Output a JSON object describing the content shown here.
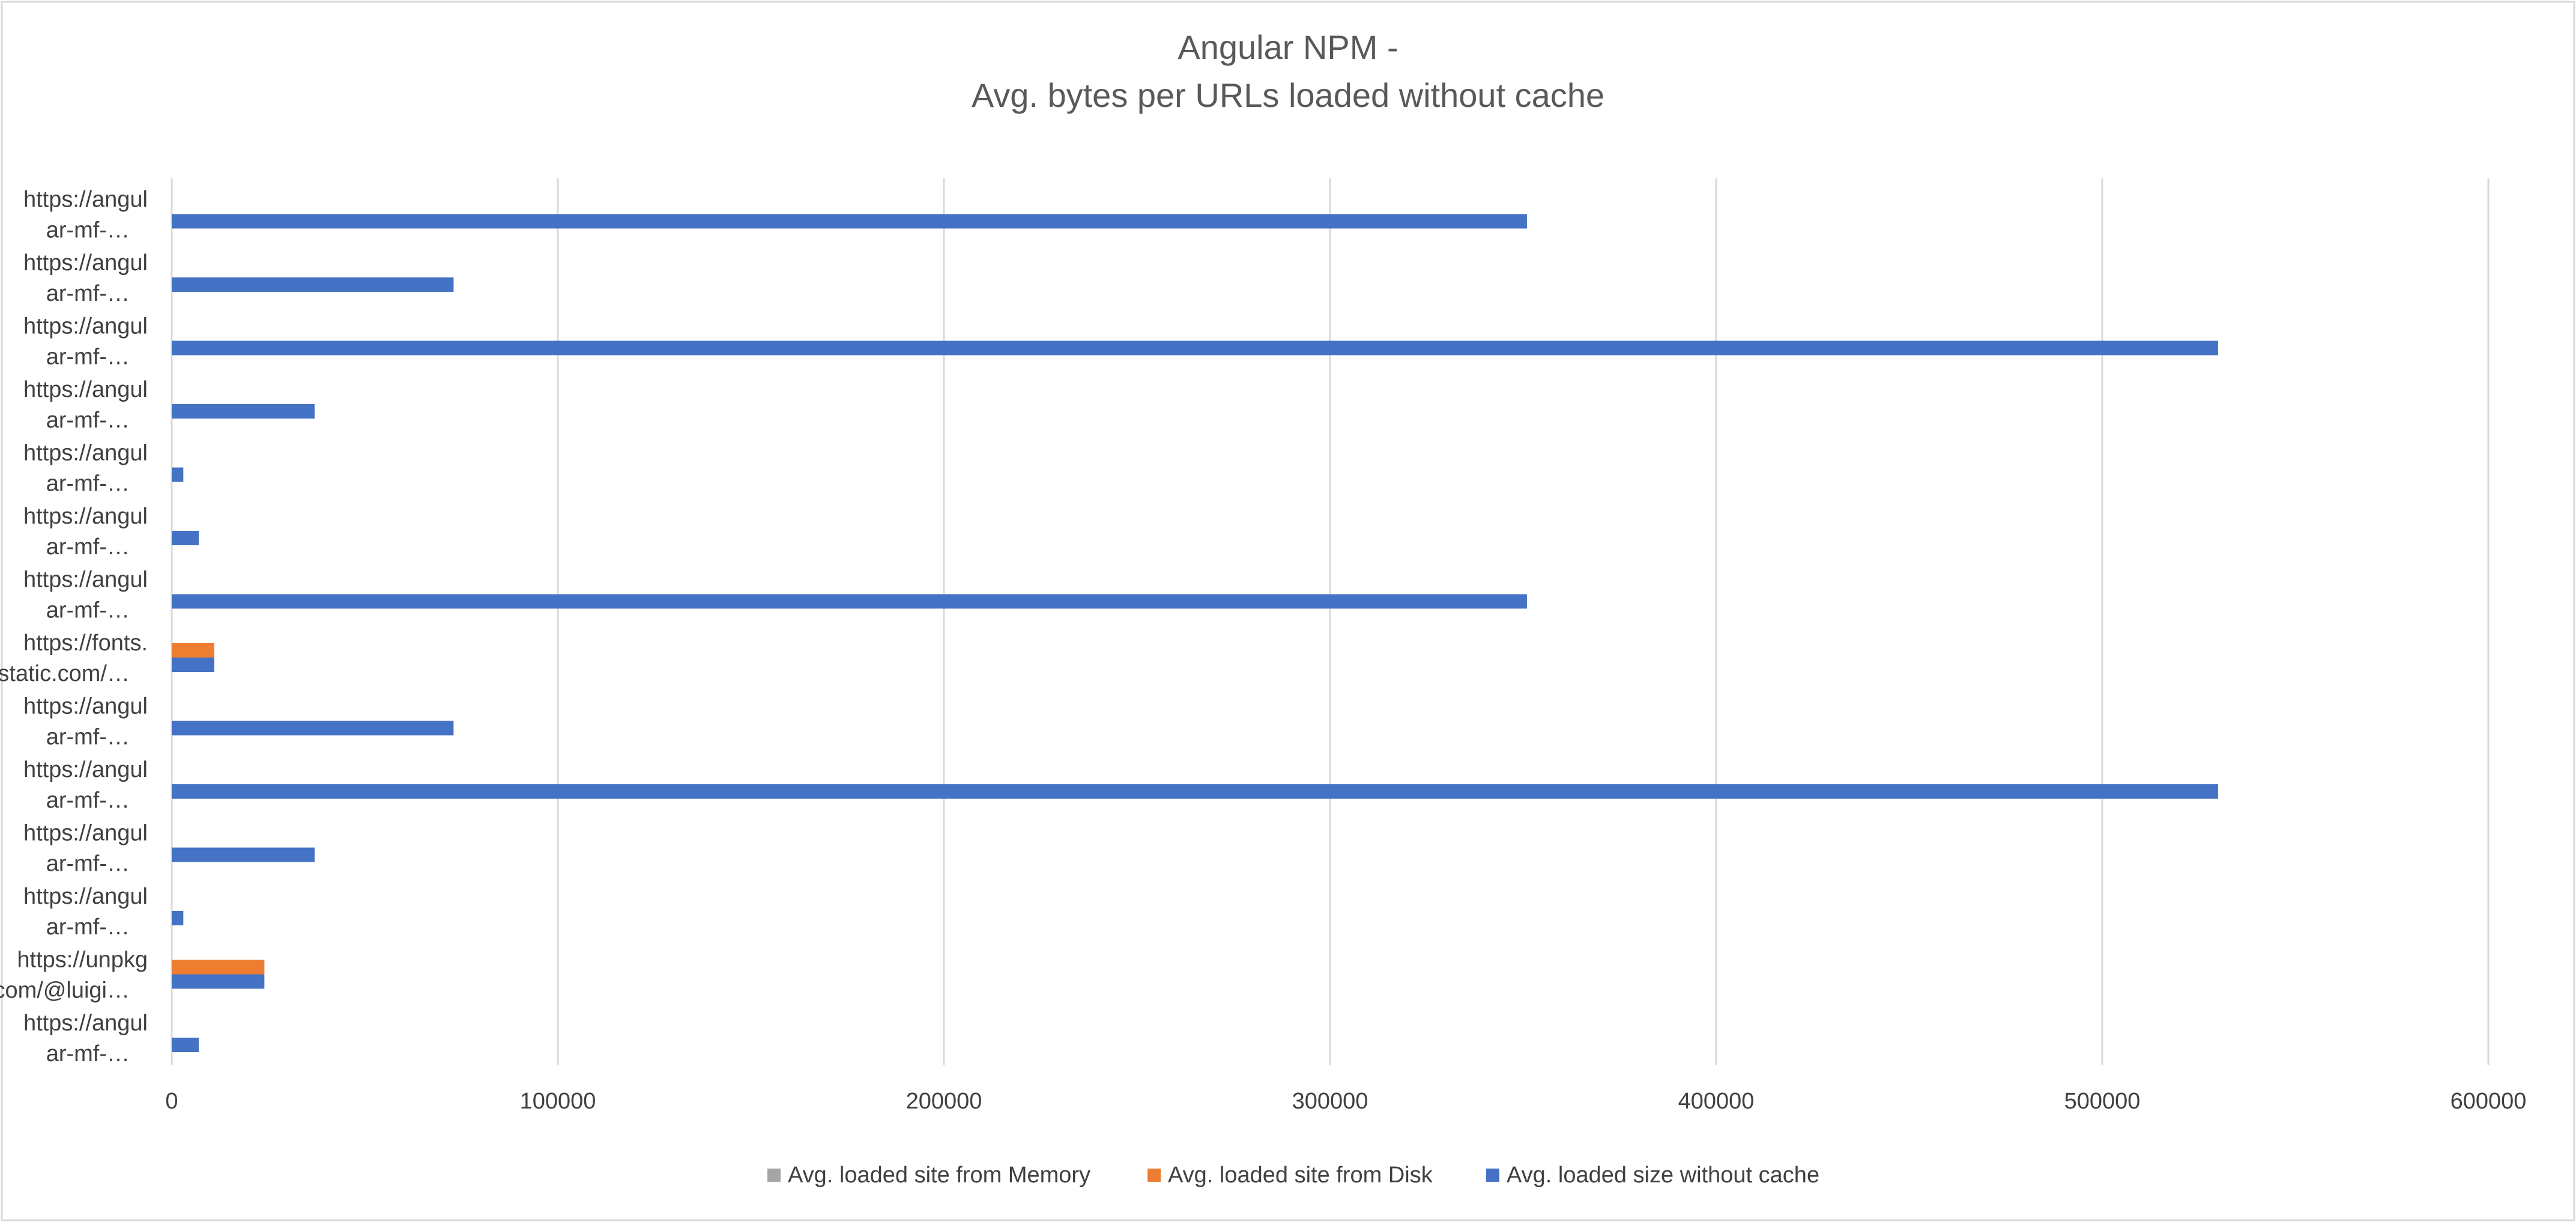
{
  "chart_data": {
    "type": "bar",
    "orientation": "horizontal",
    "title_lines": [
      "Angular NPM -",
      "Avg. bytes per URLs loaded without cache"
    ],
    "xlabel": "",
    "ylabel": "",
    "xlim": [
      0,
      600000
    ],
    "xticks": [
      0,
      100000,
      200000,
      300000,
      400000,
      500000,
      600000
    ],
    "grid": true,
    "legend_position": "bottom",
    "categories": [
      [
        "https://angul",
        "ar-mf-…"
      ],
      [
        "https://angul",
        "ar-mf-…"
      ],
      [
        "https://angul",
        "ar-mf-…"
      ],
      [
        "https://angul",
        "ar-mf-…"
      ],
      [
        "https://angul",
        "ar-mf-…"
      ],
      [
        "https://angul",
        "ar-mf-…"
      ],
      [
        "https://angul",
        "ar-mf-…"
      ],
      [
        "https://fonts.",
        "gstatic.com/…"
      ],
      [
        "https://angul",
        "ar-mf-…"
      ],
      [
        "https://angul",
        "ar-mf-…"
      ],
      [
        "https://angul",
        "ar-mf-…"
      ],
      [
        "https://angul",
        "ar-mf-…"
      ],
      [
        "https://unpkg",
        ".com/@luigi…"
      ],
      [
        "https://angul",
        "ar-mf-…"
      ]
    ],
    "series": [
      {
        "name": "Avg. loaded site from Memory",
        "color": "#a5a5a5",
        "values": [
          0,
          0,
          0,
          0,
          0,
          0,
          0,
          0,
          0,
          0,
          0,
          0,
          0,
          0
        ]
      },
      {
        "name": "Avg. loaded site from Disk",
        "color": "#ed7d31",
        "values": [
          0,
          0,
          0,
          0,
          0,
          0,
          0,
          11000,
          0,
          0,
          0,
          0,
          24000,
          0
        ]
      },
      {
        "name": "Avg. loaded size without cache",
        "color": "#4472c4",
        "values": [
          351000,
          73000,
          530000,
          37000,
          3000,
          7000,
          351000,
          11000,
          73000,
          530000,
          37000,
          3000,
          24000,
          7000
        ]
      }
    ]
  }
}
